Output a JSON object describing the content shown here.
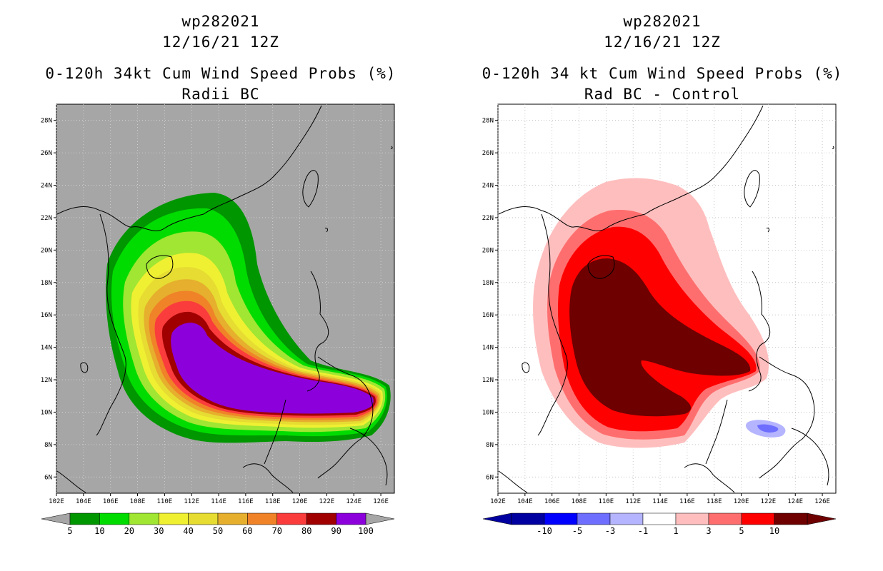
{
  "left": {
    "title_line1": "wp282021",
    "title_line2": "12/16/21 12Z",
    "title_line3": "0-120h 34kt Cum Wind Speed Probs (%)",
    "title_line4": "Radii BC",
    "colors": {
      "background": "#a6a6a6",
      "land": "#a6a6a6"
    }
  },
  "right": {
    "title_line1": "wp282021",
    "title_line2": "12/16/21 12Z",
    "title_line3": "0-120h 34 kt Cum Wind Speed Probs (%)",
    "title_line4": "Rad BC - Control",
    "colors": {
      "background": "#ffffff"
    }
  },
  "chart_data": [
    {
      "type": "heatmap",
      "title": "0-120h 34kt Cum Wind Speed Probs (%) — Radii BC",
      "storm": "wp282021",
      "valid_time": "12/16/21 12Z",
      "x_ticks": [
        "102E",
        "104E",
        "106E",
        "108E",
        "110E",
        "112E",
        "114E",
        "116E",
        "118E",
        "120E",
        "122E",
        "124E",
        "126E"
      ],
      "y_ticks": [
        "6N",
        "8N",
        "10N",
        "12N",
        "14N",
        "16N",
        "18N",
        "20N",
        "22N",
        "24N",
        "26N",
        "28N"
      ],
      "xlim": [
        102,
        127
      ],
      "ylim": [
        5,
        29
      ],
      "contour_levels": [
        5,
        10,
        20,
        30,
        40,
        50,
        60,
        70,
        80,
        90,
        100
      ],
      "level_colors": [
        "#009600",
        "#00dc00",
        "#a0e632",
        "#f0f032",
        "#e6dc32",
        "#e6af2d",
        "#f08228",
        "#fa3c3c",
        "#a00000",
        "#8c00dc"
      ],
      "colorbar_labels": [
        "5",
        "10",
        "20",
        "30",
        "40",
        "50",
        "60",
        "70",
        "80",
        "90",
        "100"
      ],
      "colorbar_extend": "both"
    },
    {
      "type": "heatmap",
      "title": "0-120h 34 kt Cum Wind Speed Probs (%) — Rad BC - Control",
      "storm": "wp282021",
      "valid_time": "12/16/21 12Z",
      "x_ticks": [
        "102E",
        "104E",
        "106E",
        "108E",
        "110E",
        "112E",
        "114E",
        "116E",
        "118E",
        "120E",
        "122E",
        "124E",
        "126E"
      ],
      "y_ticks": [
        "6N",
        "8N",
        "10N",
        "12N",
        "14N",
        "16N",
        "18N",
        "20N",
        "22N",
        "24N",
        "26N",
        "28N"
      ],
      "xlim": [
        102,
        127
      ],
      "ylim": [
        5,
        29
      ],
      "contour_levels": [
        -10,
        -5,
        -3,
        -1,
        1,
        3,
        5,
        10
      ],
      "level_colors": [
        "#0000a0",
        "#0000ff",
        "#6e6eff",
        "#b4b4ff",
        "#ffffff",
        "#ffbebe",
        "#ff6e6e",
        "#ff0000",
        "#6e0000"
      ],
      "colorbar_labels": [
        "-10",
        "-5",
        "-3",
        "-1",
        "1",
        "3",
        "5",
        "10"
      ],
      "colorbar_extend": "both"
    }
  ]
}
